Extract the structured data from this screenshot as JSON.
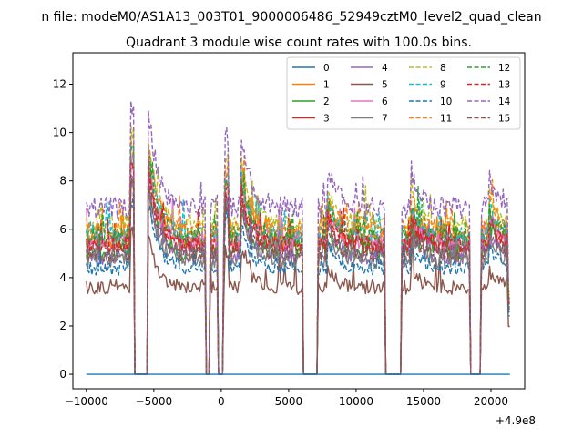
{
  "suptitle": "n file: modeM0/AS1A13_003T01_9000006486_52949cztM0_level2_quad_clean",
  "chart_data": {
    "type": "line",
    "title": "Quadrant 3 module wise count rates with 100.0s bins.",
    "xlabel": "",
    "ylabel": "",
    "x_offset_label": "+4.9e8",
    "xlim": [
      -11000,
      22500
    ],
    "ylim": [
      -0.6,
      13.3
    ],
    "xticks": [
      -10000,
      -5000,
      0,
      5000,
      10000,
      15000,
      20000
    ],
    "xtick_labels": [
      "−10000",
      "−5000",
      "0",
      "5000",
      "10000",
      "15000",
      "20000"
    ],
    "yticks": [
      0,
      2,
      4,
      6,
      8,
      10,
      12
    ],
    "ytick_labels": [
      "0",
      "2",
      "4",
      "6",
      "8",
      "10",
      "12"
    ],
    "x_range": [
      -10000,
      21400
    ],
    "bin_size": 100,
    "zero_intervals": [
      [
        -6400,
        -5500
      ],
      [
        -1100,
        -900
      ],
      [
        -200,
        100
      ],
      [
        6100,
        7100
      ],
      [
        12200,
        13300
      ],
      [
        18500,
        19200
      ]
    ],
    "flare_intervals": [
      [
        -6400,
        -5500,
        3.8
      ],
      [
        600,
        1400,
        2.6
      ],
      [
        7100,
        7800,
        1.4
      ],
      [
        13300,
        14000,
        1.3
      ],
      [
        19200,
        19800,
        1.2
      ]
    ],
    "legend_position": "upper right",
    "series": [
      {
        "name": "0",
        "color": "#1f77b4",
        "style": "solid",
        "level": 0.0,
        "noise": 0.0
      },
      {
        "name": "1",
        "color": "#ff7f0e",
        "style": "solid",
        "level": 5.6,
        "noise": 0.35
      },
      {
        "name": "2",
        "color": "#2ca02c",
        "style": "solid",
        "level": 5.1,
        "noise": 0.4
      },
      {
        "name": "3",
        "color": "#d62728",
        "style": "solid",
        "level": 5.3,
        "noise": 0.35
      },
      {
        "name": "4",
        "color": "#9467bd",
        "style": "solid",
        "level": 4.9,
        "noise": 0.35
      },
      {
        "name": "5",
        "color": "#8c564b",
        "style": "solid",
        "level": 3.6,
        "noise": 0.3
      },
      {
        "name": "6",
        "color": "#e377c2",
        "style": "solid",
        "level": 5.5,
        "noise": 0.35
      },
      {
        "name": "7",
        "color": "#7f7f7f",
        "style": "solid",
        "level": 4.7,
        "noise": 0.35
      },
      {
        "name": "8",
        "color": "#bcbd22",
        "style": "dashed",
        "level": 6.2,
        "noise": 0.4
      },
      {
        "name": "9",
        "color": "#17becf",
        "style": "dashed",
        "level": 5.8,
        "noise": 0.35
      },
      {
        "name": "10",
        "color": "#1f77b4",
        "style": "dashed",
        "level": 4.4,
        "noise": 0.3
      },
      {
        "name": "11",
        "color": "#ff7f0e",
        "style": "dashed",
        "level": 6.0,
        "noise": 0.35
      },
      {
        "name": "12",
        "color": "#2ca02c",
        "style": "dashed",
        "level": 5.7,
        "noise": 0.4
      },
      {
        "name": "13",
        "color": "#d62728",
        "style": "dashed",
        "level": 5.4,
        "noise": 0.35
      },
      {
        "name": "14",
        "color": "#9467bd",
        "style": "dashed",
        "level": 6.9,
        "noise": 0.45
      },
      {
        "name": "15",
        "color": "#8c564b",
        "style": "dashed",
        "level": 5.0,
        "noise": 0.35
      }
    ]
  }
}
